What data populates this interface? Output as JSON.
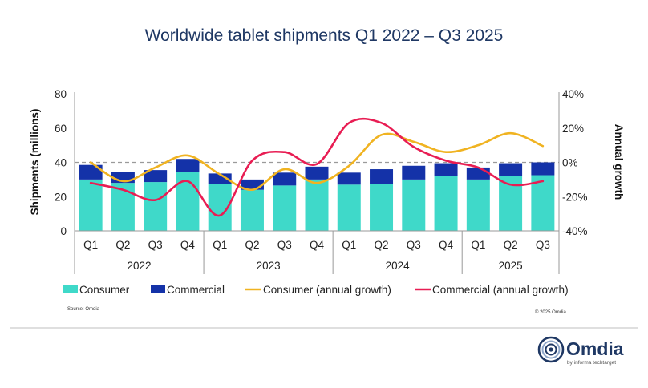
{
  "chart_data": {
    "type": "bar",
    "title": "Worldwide tablet shipments Q1 2022 – Q3 2025",
    "categories": [
      "Q1",
      "Q2",
      "Q3",
      "Q4",
      "Q1",
      "Q2",
      "Q3",
      "Q4",
      "Q1",
      "Q2",
      "Q3",
      "Q4",
      "Q1",
      "Q2",
      "Q3"
    ],
    "years": [
      {
        "label": "2022",
        "count": 4
      },
      {
        "label": "2023",
        "count": 4
      },
      {
        "label": "2024",
        "count": 4
      },
      {
        "label": "2025",
        "count": 3
      }
    ],
    "ylabel": "Shipments (millions)",
    "ylabel_right": "Annual growth",
    "ylim": [
      0,
      80
    ],
    "yticks": [
      0,
      20,
      40,
      60,
      80
    ],
    "y2lim": [
      -40,
      40
    ],
    "y2ticks": [
      "-40%",
      "-20%",
      "0%",
      "20%",
      "40%"
    ],
    "reference_line": 40,
    "series": [
      {
        "name": "Consumer",
        "kind": "bar",
        "color": "#3fd9c9",
        "values": [
          30,
          28,
          28.5,
          34.5,
          27.5,
          24,
          26.5,
          30,
          27,
          27.5,
          30,
          32,
          30,
          32,
          32.5
        ]
      },
      {
        "name": "Commercial",
        "kind": "bar",
        "color": "#1432a8",
        "values": [
          8.5,
          6.5,
          7,
          7.5,
          6,
          6,
          7.5,
          7.5,
          7,
          8.5,
          8,
          7.5,
          7,
          7.5,
          7.5
        ]
      },
      {
        "name": "Consumer (annual growth)",
        "kind": "line",
        "color": "#f0b321",
        "values": [
          0,
          -11,
          -3,
          4,
          -7,
          -16,
          -4,
          -12,
          -2,
          16,
          12,
          6,
          10,
          17,
          9.5
        ]
      },
      {
        "name": "Commercial (annual growth)",
        "kind": "line",
        "color": "#e81d53",
        "values": [
          -12,
          -16,
          -22,
          -11,
          -31,
          1,
          6,
          -1,
          23,
          23,
          9,
          1,
          -3,
          -13,
          -11
        ]
      }
    ],
    "source": "Source: Omdia",
    "copyright": "© 2025 Omdia"
  },
  "brand": {
    "name": "Omdia",
    "tagline": "by informa techtarget"
  }
}
